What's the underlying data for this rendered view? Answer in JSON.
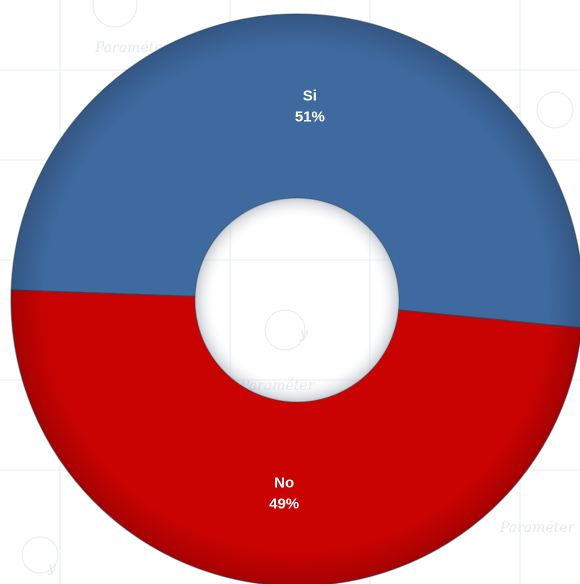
{
  "chart_data": {
    "type": "pie",
    "style": "donut",
    "categories": [
      "Si",
      "No"
    ],
    "values": [
      51,
      49
    ],
    "data_labels": [
      "51%",
      "49%"
    ],
    "colors": [
      "#3f6aa0",
      "#c90202"
    ],
    "legend": "none",
    "title": ""
  }
}
